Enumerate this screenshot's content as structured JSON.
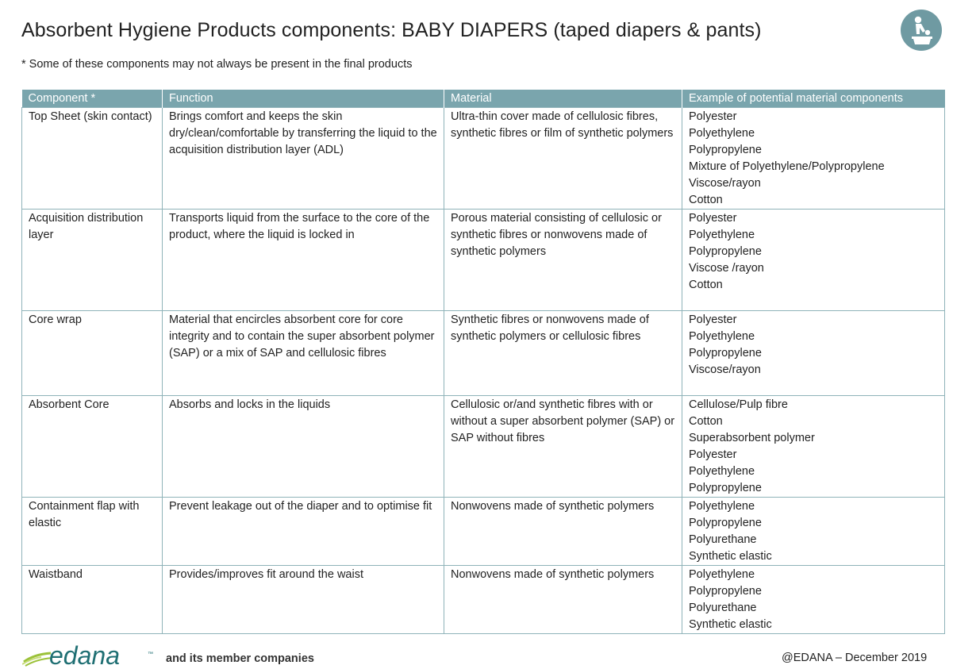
{
  "title": "Absorbent Hygiene Products components: BABY DIAPERS (taped diapers & pants)",
  "subtitle": "* Some of these components may not always be present in the final products",
  "table": {
    "headers": [
      "Component *",
      "Function",
      "Material",
      "Example of potential material components"
    ],
    "rows": [
      {
        "component": "Top Sheet (skin contact)",
        "function": "Brings comfort and keeps the skin dry/clean/comfortable by transferring the liquid to the acquisition distribution layer (ADL)",
        "material": "Ultra-thin cover made of cellulosic fibres, synthetic fibres or film of synthetic polymers",
        "examples": [
          "Polyester",
          "Polyethylene",
          "Polypropylene",
          "Mixture of Polyethylene/Polypropylene",
          "Viscose/rayon",
          "Cotton"
        ]
      },
      {
        "component": "Acquisition distribution layer",
        "function": "Transports liquid from the surface to the core of the product, where the liquid is locked in",
        "material": "Porous material consisting of cellulosic or synthetic fibres or nonwovens made of synthetic polymers",
        "examples": [
          "Polyester",
          "Polyethylene",
          "Polypropylene",
          "Viscose /rayon",
          "Cotton"
        ]
      },
      {
        "component": "Core wrap",
        "function": "Material that encircles absorbent core for core integrity and to contain the super absorbent polymer (SAP) or a mix of SAP and cellulosic fibres",
        "material": "Synthetic fibres or nonwovens made of synthetic polymers or cellulosic fibres",
        "examples": [
          "Polyester",
          "Polyethylene",
          "Polypropylene",
          "Viscose/rayon"
        ]
      },
      {
        "component": "Absorbent Core",
        "function": "Absorbs and locks in the liquids",
        "material": "Cellulosic or/and synthetic fibres with or without a super absorbent polymer (SAP) or SAP without fibres",
        "examples": [
          "Cellulose/Pulp fibre",
          "Cotton",
          "Superabsorbent polymer",
          "Polyester",
          "Polyethylene",
          "Polypropylene"
        ]
      },
      {
        "component": "Containment flap with elastic",
        "function": "Prevent leakage out of the diaper and to optimise fit",
        "material": "Nonwovens made of synthetic polymers",
        "examples": [
          "Polyethylene",
          "Polypropylene",
          "Polyurethane",
          "Synthetic elastic"
        ]
      },
      {
        "component": "Waistband",
        "function": "Provides/improves fit around the waist",
        "material": "Nonwovens made of synthetic polymers",
        "examples": [
          "Polyethylene",
          "Polypropylene",
          "Polyurethane",
          "Synthetic elastic"
        ]
      }
    ]
  },
  "footer": {
    "logo_text": "edana",
    "logo_tm": "™",
    "member_text": "and its member companies",
    "copyright": "@EDANA – December 2019"
  },
  "colors": {
    "header_bg": "#7aa5ad",
    "border": "#8fb3b9",
    "logo_teal": "#1f6f73",
    "logo_green": "#9cc23a",
    "badge": "#6f9aa2"
  },
  "icons": {
    "badge": "baby-changing-icon",
    "logo": "edana-logo"
  }
}
